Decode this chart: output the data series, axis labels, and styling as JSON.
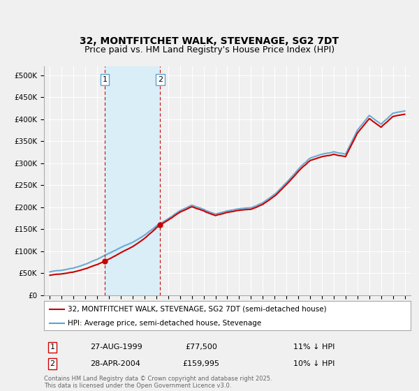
{
  "title": "32, MONTFITCHET WALK, STEVENAGE, SG2 7DT",
  "subtitle": "Price paid vs. HM Land Registry's House Price Index (HPI)",
  "legend_label_red": "32, MONTFITCHET WALK, STEVENAGE, SG2 7DT (semi-detached house)",
  "legend_label_blue": "HPI: Average price, semi-detached house, Stevenage",
  "footer": "Contains HM Land Registry data © Crown copyright and database right 2025.\nThis data is licensed under the Open Government Licence v3.0.",
  "purchases": [
    {
      "label": "1",
      "date": "27-AUG-1999",
      "price": 77500,
      "pct": "11%",
      "direction": "↓",
      "x_year": 1999.65
    },
    {
      "label": "2",
      "date": "28-APR-2004",
      "price": 159995,
      "pct": "10%",
      "direction": "↓",
      "x_year": 2004.32
    }
  ],
  "ylim": [
    0,
    520000
  ],
  "yticks": [
    0,
    50000,
    100000,
    150000,
    200000,
    250000,
    300000,
    350000,
    400000,
    450000,
    500000
  ],
  "ytick_labels": [
    "£0",
    "£50K",
    "£100K",
    "£150K",
    "£200K",
    "£250K",
    "£300K",
    "£350K",
    "£400K",
    "£450K",
    "£500K"
  ],
  "xlim_start": 1994.5,
  "xlim_end": 2025.5,
  "color_red": "#cc0000",
  "color_blue": "#5ba3d0",
  "color_shading": "#daeef8",
  "background_color": "#f0f0f0",
  "plot_bg_color": "#f0f0f0",
  "grid_color": "#ffffff",
  "vline_color": "#cc0000",
  "hpi_anchors_x": [
    1995,
    1996,
    1997,
    1998,
    1999,
    2000,
    2001,
    2002,
    2003,
    2004,
    2005,
    2006,
    2007,
    2008,
    2009,
    2010,
    2011,
    2012,
    2013,
    2014,
    2015,
    2016,
    2017,
    2018,
    2019,
    2020,
    2021,
    2022,
    2023,
    2024,
    2025
  ],
  "hpi_anchors_y": [
    53000,
    57000,
    63000,
    72000,
    83000,
    97000,
    110000,
    122000,
    138000,
    158000,
    175000,
    192000,
    205000,
    195000,
    185000,
    192000,
    196000,
    198000,
    210000,
    228000,
    255000,
    285000,
    310000,
    320000,
    325000,
    320000,
    375000,
    410000,
    390000,
    415000,
    420000
  ],
  "title_fontsize": 10,
  "subtitle_fontsize": 9,
  "tick_fontsize": 7.5,
  "legend_fontsize": 7.5
}
